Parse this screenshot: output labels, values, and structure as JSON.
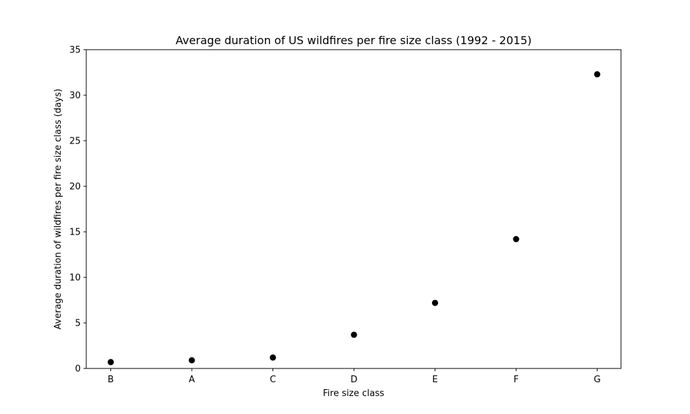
{
  "chart_data": {
    "type": "scatter",
    "title": "Average duration of US wildfires per fire size class (1992 - 2015)",
    "xlabel": "Fire size class",
    "ylabel": "Average duration of wildfires per fire size class (days)",
    "categories": [
      "B",
      "A",
      "C",
      "D",
      "E",
      "F",
      "G"
    ],
    "values": [
      0.7,
      0.9,
      1.2,
      3.7,
      7.2,
      14.2,
      32.3
    ],
    "ylim": [
      0,
      35
    ],
    "yticks": [
      0,
      5,
      10,
      15,
      20,
      25,
      30,
      35
    ],
    "grid": false,
    "marker_color": "#000000"
  }
}
